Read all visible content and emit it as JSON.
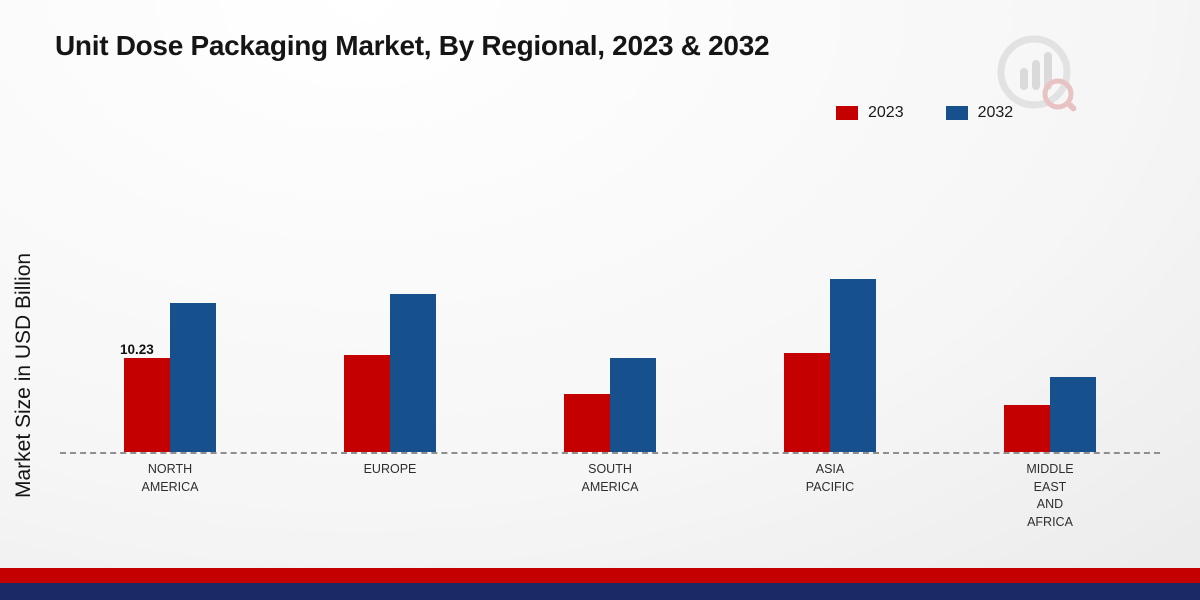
{
  "page": {
    "title": "Unit Dose Packaging Market, By Regional, 2023 & 2032",
    "y_axis_label": "Market Size in USD Billion"
  },
  "chart_data": {
    "type": "bar",
    "title": "Unit Dose Packaging Market, By Regional, 2023 & 2032",
    "xlabel": "",
    "ylabel": "Market Size in USD Billion",
    "categories": [
      "NORTH\nAMERICA",
      "EUROPE",
      "SOUTH\nAMERICA",
      "ASIA\nPACIFIC",
      "MIDDLE\nEAST\nAND\nAFRICA"
    ],
    "series": [
      {
        "name": "2023",
        "color": "#c40001",
        "values": [
          10.23,
          10.6,
          6.3,
          10.8,
          5.1
        ]
      },
      {
        "name": "2032",
        "color": "#16518e",
        "values": [
          16.2,
          17.2,
          10.2,
          18.8,
          8.2
        ]
      }
    ],
    "ylim": [
      0,
      25
    ],
    "grid": false,
    "legend_position": "top-right",
    "baseline_style": "dashed",
    "annotations": [
      {
        "series_index": 0,
        "category_index": 0,
        "text": "10.23"
      }
    ]
  },
  "footer": {
    "stripe_top_color": "#c40001",
    "stripe_bottom_color": "#1b2a66"
  },
  "branding": {
    "logo_name": "bar-chart-magnifier-logo"
  }
}
